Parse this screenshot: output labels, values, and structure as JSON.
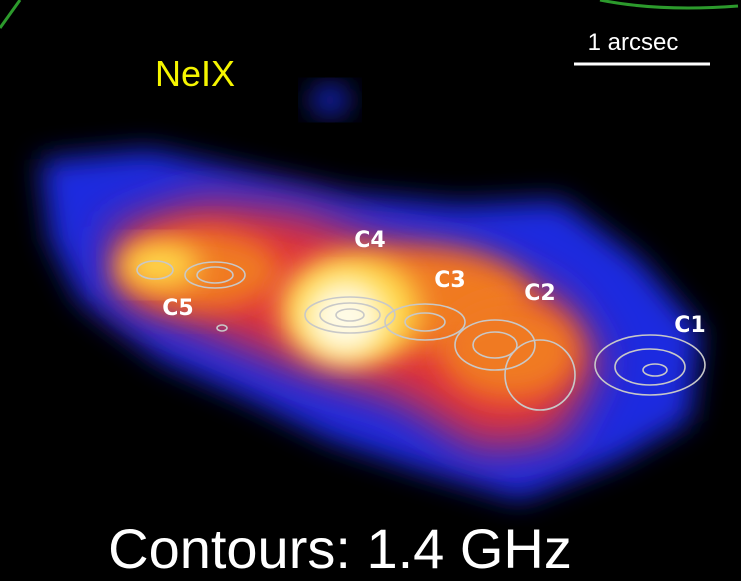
{
  "title": "NeIX",
  "scale_bar": "1 arcsec",
  "labels": [
    "C1",
    "C2",
    "C3",
    "C4",
    "C5"
  ],
  "caption": "Contours: 1.4 GHz"
}
